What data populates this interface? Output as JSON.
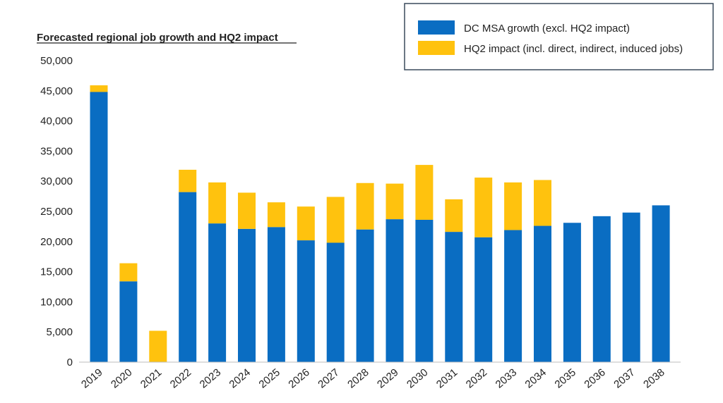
{
  "colors": {
    "series_1": "#0a6dc2",
    "series_2": "#ffc20e",
    "legend_border": "#3a4a5c",
    "text": "#222222"
  },
  "chart_data": {
    "type": "bar",
    "stacked": true,
    "title": "Forecasted regional job growth and HQ2 impact",
    "xlabel": "",
    "ylabel": "",
    "ylim": [
      0,
      50000
    ],
    "yticks": [
      0,
      5000,
      10000,
      15000,
      20000,
      25000,
      30000,
      35000,
      40000,
      45000,
      50000
    ],
    "ytick_labels": [
      "0",
      "5,000",
      "10,000",
      "15,000",
      "20,000",
      "25,000",
      "30,000",
      "35,000",
      "40,000",
      "45,000",
      "50,000"
    ],
    "grid": false,
    "legend_position": "top-right",
    "categories": [
      "2019",
      "2020",
      "2021",
      "2022",
      "2023",
      "2024",
      "2025",
      "2026",
      "2027",
      "2028",
      "2029",
      "2030",
      "2031",
      "2032",
      "2033",
      "2034",
      "2035",
      "2036",
      "2037",
      "2038"
    ],
    "series": [
      {
        "name": "DC MSA growth (excl. HQ2 impact)",
        "values": [
          44800,
          13400,
          0,
          28200,
          23000,
          22100,
          22400,
          20200,
          19800,
          22000,
          23700,
          23600,
          21600,
          20700,
          21900,
          22600,
          23100,
          24200,
          24800,
          26000
        ]
      },
      {
        "name": "HQ2 impact (incl. direct, indirect, induced jobs)",
        "values": [
          1100,
          3000,
          5200,
          3700,
          6800,
          6000,
          4100,
          5600,
          7600,
          7700,
          5900,
          9100,
          5400,
          9900,
          7900,
          7600,
          0,
          0,
          0,
          0
        ]
      }
    ]
  }
}
